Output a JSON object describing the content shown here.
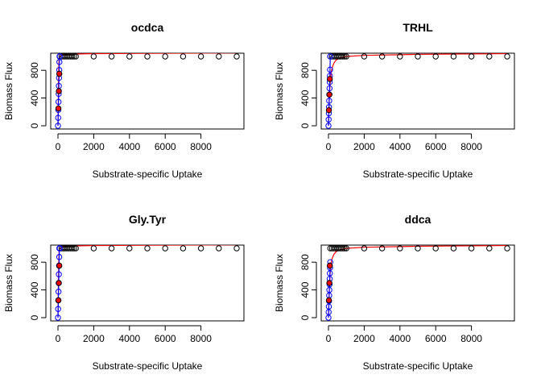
{
  "chart_data": [
    {
      "type": "scatter",
      "title": "ocdca",
      "xlabel": "Substrate-specific Uptake",
      "ylabel": "Biomass Flux",
      "xlim": [
        0,
        10000
      ],
      "ylim": [
        0,
        1000
      ],
      "x_ticks": [
        0,
        2000,
        4000,
        6000,
        8000
      ],
      "y_ticks": [
        0,
        400,
        800
      ],
      "grid": false,
      "series": [
        {
          "color": "#000000",
          "marker": "open-circle",
          "x": [
            100,
            200,
            300,
            400,
            500,
            600,
            700,
            800,
            900,
            1000,
            2000,
            3000,
            4000,
            5000,
            6000,
            7000,
            8000,
            9000,
            10000
          ],
          "y": [
            1000,
            1000,
            1000,
            1000,
            1000,
            1000,
            1000,
            1000,
            1000,
            1000,
            1000,
            1000,
            1000,
            1000,
            1000,
            1000,
            1000,
            1000,
            1000
          ]
        },
        {
          "color": "#0000ff",
          "marker": "open-circle",
          "x": [
            0,
            10,
            20,
            30,
            40,
            50,
            60,
            70,
            80,
            90,
            100
          ],
          "y": [
            0,
            115,
            230,
            345,
            460,
            575,
            690,
            805,
            920,
            1000,
            1000
          ]
        },
        {
          "color": "#ff0000",
          "marker": "filled-circle",
          "x": [
            25,
            50,
            75
          ],
          "y": [
            250,
            500,
            750
          ]
        },
        {
          "color": "#ff0000",
          "marker": "line",
          "x": [
            0,
            20,
            40,
            60,
            80,
            100,
            200,
            400,
            600,
            1000,
            2000,
            5000,
            10000
          ],
          "y": [
            0,
            400,
            800,
            960,
            990,
            1000,
            1015,
            1025,
            1030,
            1035,
            1040,
            1045,
            1050
          ]
        },
        {
          "color": "#0000ff",
          "marker": "line",
          "x": [
            0,
            20,
            40,
            60,
            80,
            90,
            100
          ],
          "y": [
            0,
            230,
            460,
            690,
            920,
            1000,
            1000
          ]
        }
      ]
    },
    {
      "type": "scatter",
      "title": "TRHL",
      "xlabel": "Substrate-specific Uptake",
      "ylabel": "Biomass Flux",
      "xlim": [
        0,
        10000
      ],
      "ylim": [
        0,
        1000
      ],
      "x_ticks": [
        0,
        2000,
        4000,
        6000,
        8000
      ],
      "y_ticks": [
        0,
        400,
        800
      ],
      "grid": false,
      "series": [
        {
          "color": "#000000",
          "marker": "open-circle",
          "x": [
            100,
            200,
            300,
            400,
            500,
            600,
            700,
            800,
            900,
            1000,
            2000,
            3000,
            4000,
            5000,
            6000,
            7000,
            8000,
            9000,
            10000
          ],
          "y": [
            1000,
            1000,
            1000,
            1000,
            1000,
            1000,
            1000,
            1000,
            1000,
            1000,
            1000,
            1000,
            1000,
            1000,
            1000,
            1000,
            1000,
            1000,
            1000
          ]
        },
        {
          "color": "#0000ff",
          "marker": "open-circle",
          "x": [
            0,
            10,
            20,
            30,
            40,
            50,
            60,
            70,
            80,
            90,
            100
          ],
          "y": [
            0,
            90,
            180,
            270,
            360,
            450,
            540,
            630,
            720,
            810,
            1000
          ]
        },
        {
          "color": "#ff0000",
          "marker": "filled-circle",
          "x": [
            25,
            50,
            75
          ],
          "y": [
            225,
            450,
            675
          ]
        },
        {
          "color": "#ff0000",
          "marker": "line",
          "x": [
            0,
            50,
            100,
            150,
            200,
            300,
            400,
            500,
            700,
            1000,
            2000,
            5000,
            10000
          ],
          "y": [
            0,
            420,
            640,
            760,
            830,
            900,
            940,
            960,
            985,
            1000,
            1015,
            1030,
            1040
          ]
        },
        {
          "color": "#0000ff",
          "marker": "line",
          "x": [
            0,
            20,
            40,
            60,
            80,
            100
          ],
          "y": [
            0,
            180,
            360,
            540,
            720,
            1000
          ]
        }
      ]
    },
    {
      "type": "scatter",
      "title": "Gly.Tyr",
      "xlabel": "Substrate-specific Uptake",
      "ylabel": "Biomass Flux",
      "xlim": [
        0,
        10000
      ],
      "ylim": [
        0,
        1000
      ],
      "x_ticks": [
        0,
        2000,
        4000,
        6000,
        8000
      ],
      "y_ticks": [
        0,
        400,
        800
      ],
      "grid": false,
      "series": [
        {
          "color": "#000000",
          "marker": "open-circle",
          "x": [
            100,
            200,
            300,
            400,
            500,
            600,
            700,
            800,
            900,
            1000,
            2000,
            3000,
            4000,
            5000,
            6000,
            7000,
            8000,
            9000,
            10000
          ],
          "y": [
            1000,
            1000,
            1000,
            1000,
            1000,
            1000,
            1000,
            1000,
            1000,
            1000,
            1000,
            1000,
            1000,
            1000,
            1000,
            1000,
            1000,
            1000,
            1000
          ]
        },
        {
          "color": "#0000ff",
          "marker": "open-circle",
          "x": [
            0,
            10,
            20,
            30,
            40,
            50,
            60,
            70,
            80,
            90,
            100
          ],
          "y": [
            0,
            125,
            250,
            375,
            500,
            625,
            750,
            875,
            1000,
            1000,
            1000
          ]
        },
        {
          "color": "#ff0000",
          "marker": "filled-circle",
          "x": [
            25,
            50,
            75
          ],
          "y": [
            250,
            500,
            750
          ]
        },
        {
          "color": "#ff0000",
          "marker": "line",
          "x": [
            0,
            20,
            40,
            60,
            80,
            100,
            200,
            400,
            600,
            1000,
            2000,
            5000,
            10000
          ],
          "y": [
            0,
            380,
            760,
            950,
            990,
            1000,
            1015,
            1025,
            1030,
            1035,
            1040,
            1045,
            1050
          ]
        },
        {
          "color": "#0000ff",
          "marker": "line",
          "x": [
            0,
            20,
            40,
            60,
            80,
            100
          ],
          "y": [
            0,
            250,
            500,
            750,
            1000,
            1000
          ]
        }
      ]
    },
    {
      "type": "scatter",
      "title": "ddca",
      "xlabel": "Substrate-specific Uptake",
      "ylabel": "Biomass Flux",
      "xlim": [
        0,
        10000
      ],
      "ylim": [
        0,
        1000
      ],
      "x_ticks": [
        0,
        2000,
        4000,
        6000,
        8000
      ],
      "y_ticks": [
        0,
        400,
        800
      ],
      "grid": false,
      "series": [
        {
          "color": "#000000",
          "marker": "open-circle",
          "x": [
            100,
            200,
            300,
            400,
            500,
            600,
            700,
            800,
            900,
            1000,
            2000,
            3000,
            4000,
            5000,
            6000,
            7000,
            8000,
            9000,
            10000
          ],
          "y": [
            1000,
            1000,
            1000,
            1000,
            1000,
            1000,
            1000,
            1000,
            1000,
            1000,
            1000,
            1000,
            1000,
            1000,
            1000,
            1000,
            1000,
            1000,
            1000
          ]
        },
        {
          "color": "#0000ff",
          "marker": "open-circle",
          "x": [
            0,
            10,
            20,
            30,
            40,
            50,
            60,
            70,
            80,
            90,
            100
          ],
          "y": [
            0,
            80,
            160,
            240,
            320,
            400,
            480,
            560,
            640,
            720,
            800
          ]
        },
        {
          "color": "#ff0000",
          "marker": "filled-circle",
          "x": [
            25,
            50,
            75
          ],
          "y": [
            250,
            500,
            750
          ]
        },
        {
          "color": "#ff0000",
          "marker": "line",
          "x": [
            0,
            50,
            100,
            150,
            200,
            300,
            400,
            500,
            700,
            1000,
            2000,
            5000,
            10000
          ],
          "y": [
            0,
            430,
            660,
            780,
            850,
            910,
            945,
            965,
            985,
            1000,
            1015,
            1030,
            1040
          ]
        },
        {
          "color": "#0000ff",
          "marker": "line",
          "x": [
            0,
            20,
            40,
            60,
            80,
            100
          ],
          "y": [
            0,
            160,
            320,
            480,
            640,
            800
          ]
        }
      ]
    }
  ]
}
